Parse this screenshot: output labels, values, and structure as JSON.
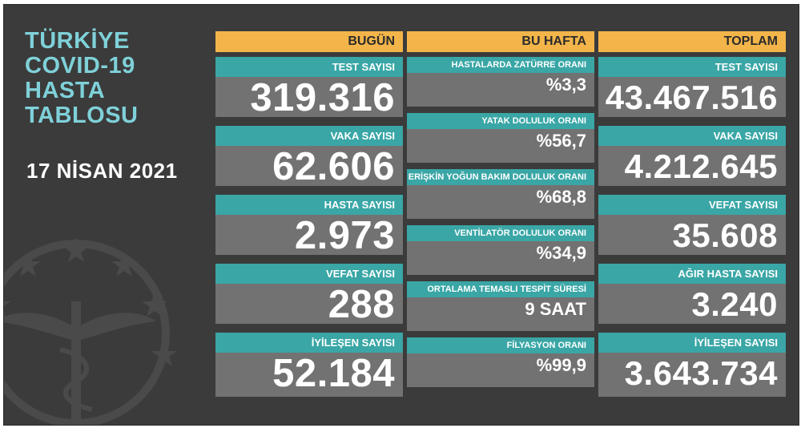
{
  "title_lines": [
    "TÜRKİYE",
    "COVID-19",
    "HASTA",
    "TABLOSU"
  ],
  "date": "17 NİSAN 2021",
  "colors": {
    "background": "#3b3b3b",
    "header": "#f3b54a",
    "label": "#3aa6a6",
    "card": "#727272",
    "title": "#7fd1d9"
  },
  "emblem_icon": "ministry-of-health-emblem-icon",
  "today": {
    "header": "BUGÜN",
    "items": [
      {
        "label": "TEST SAYISI",
        "value": "319.316"
      },
      {
        "label": "VAKA SAYISI",
        "value": "62.606"
      },
      {
        "label": "HASTA SAYISI",
        "value": "2.973"
      },
      {
        "label": "VEFAT SAYISI",
        "value": "288"
      },
      {
        "label": "İYİLEŞEN SAYISI",
        "value": "52.184"
      }
    ]
  },
  "week": {
    "header": "BU HAFTA",
    "items": [
      {
        "label": "HASTALARDA ZATÜRRE ORANI",
        "value": "%3,3"
      },
      {
        "label": "YATAK DOLULUK ORANI",
        "value": "%56,7"
      },
      {
        "label": "ERİŞKİN YOĞUN BAKIM DOLULUK ORANI",
        "value": "%68,8"
      },
      {
        "label": "VENTİLATÖR DOLULUK ORANI",
        "value": "%34,9"
      },
      {
        "label": "ORTALAMA TEMASLI TESPİT SÜRESİ",
        "value": "9 SAAT"
      },
      {
        "label": "FİLYASYON ORANI",
        "value": "%99,9"
      }
    ]
  },
  "total": {
    "header": "TOPLAM",
    "items": [
      {
        "label": "TEST SAYISI",
        "value": "43.467.516"
      },
      {
        "label": "VAKA SAYISI",
        "value": "4.212.645"
      },
      {
        "label": "VEFAT SAYISI",
        "value": "35.608"
      },
      {
        "label": "AĞIR HASTA SAYISI",
        "value": "3.240"
      },
      {
        "label": "İYİLEŞEN SAYISI",
        "value": "3.643.734"
      }
    ]
  }
}
